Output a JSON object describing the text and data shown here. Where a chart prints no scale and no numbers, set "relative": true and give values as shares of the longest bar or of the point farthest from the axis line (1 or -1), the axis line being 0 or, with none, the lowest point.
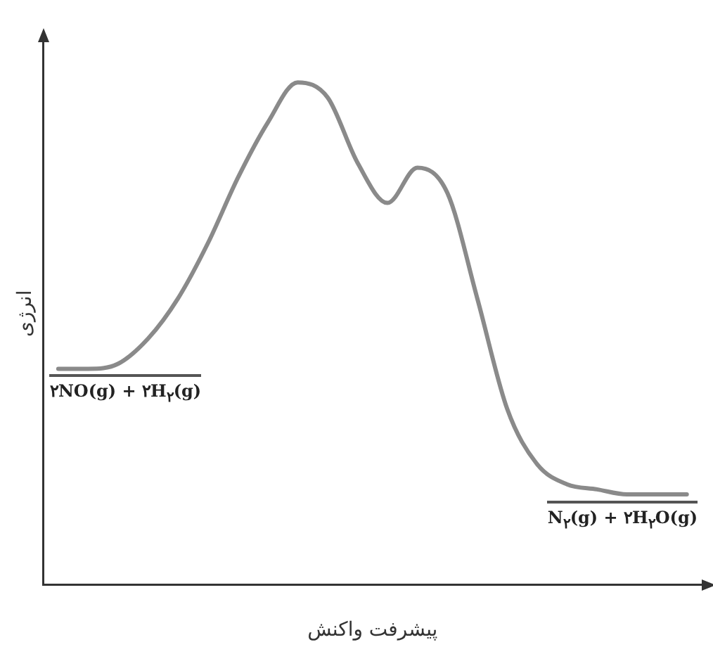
{
  "chart_data": {
    "type": "line",
    "relative": true,
    "xlabel": "پیشرفت واکنش",
    "ylabel": "انرژی",
    "categories": [
      null,
      null,
      null,
      null,
      null,
      null,
      null,
      null,
      null,
      null,
      null,
      null,
      null,
      null,
      null,
      null,
      null,
      null,
      null,
      null,
      null,
      null
    ],
    "series": [
      {
        "color": "#8a8a8a",
        "values": [
          0.43,
          0.43,
          0.44,
          0.49,
          0.57,
          0.68,
          0.81,
          0.92,
          1,
          0.97,
          0.84,
          0.76,
          0.83,
          0.78,
          0.57,
          0.35,
          0.24,
          0.2,
          0.19,
          0.18,
          0.18,
          0.18
        ]
      }
    ],
    "annotations": [
      "۲NO(g) + ۲H$_{۲}$(g)",
      "N$_{۲}$(g) + ۲H$_{۲}$O(g)"
    ],
    "marker": "none",
    "grid": false,
    "legend": false
  }
}
